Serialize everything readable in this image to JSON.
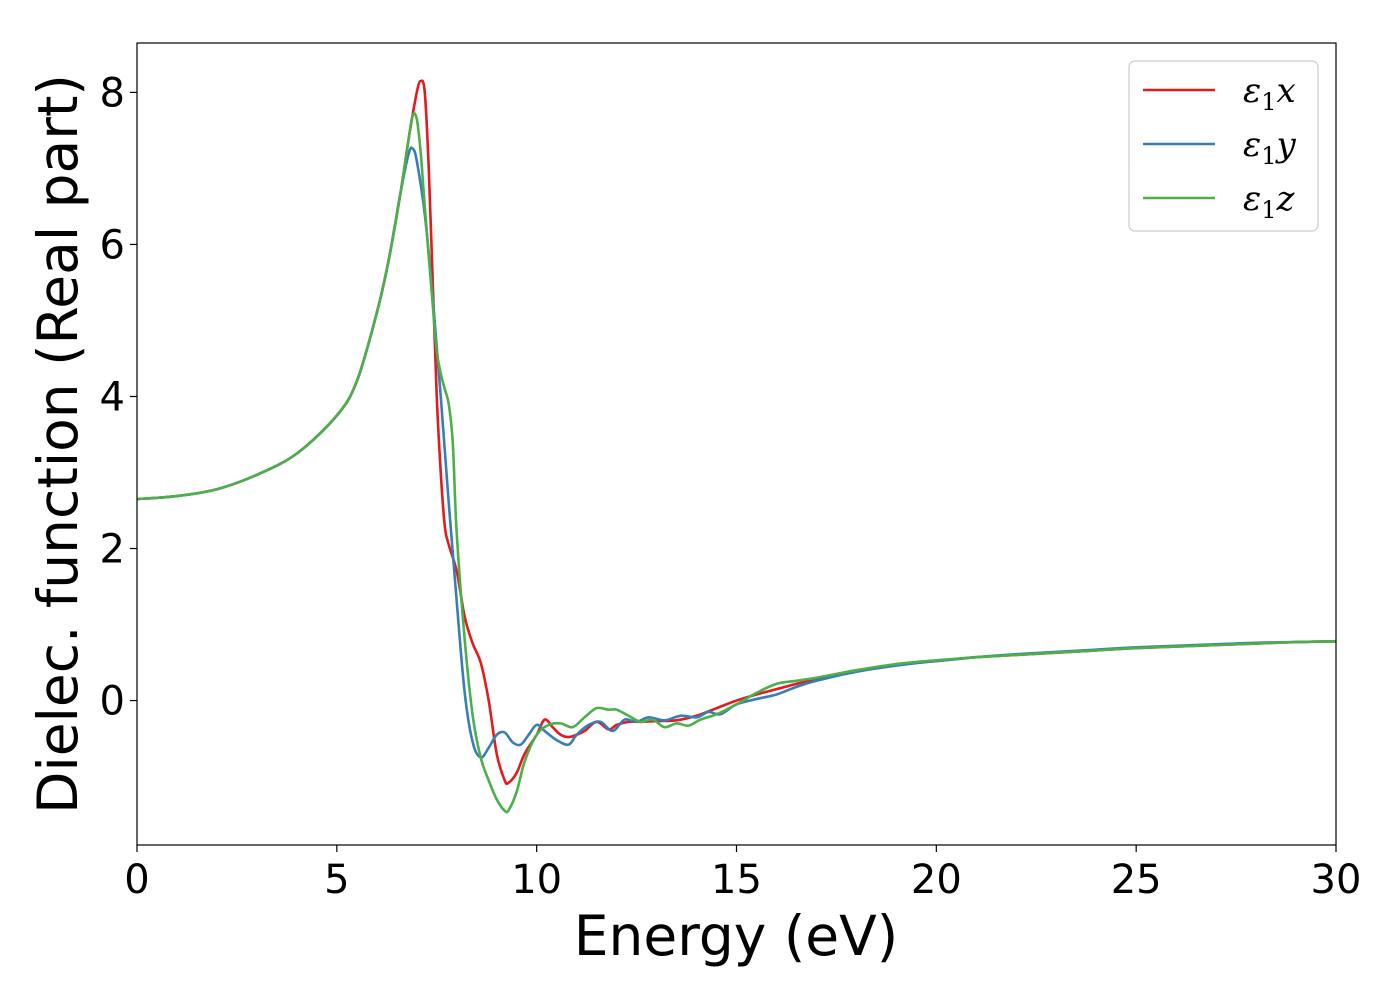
{
  "chart_data": {
    "type": "line",
    "title": "",
    "xlabel": "Energy (eV)",
    "ylabel": "Dielec. function (Real part)",
    "xlim": [
      0,
      30
    ],
    "ylim": [
      -1.9,
      8.65
    ],
    "xticks": [
      0,
      5,
      10,
      15,
      20,
      25,
      30
    ],
    "yticks": [
      0,
      2,
      4,
      6,
      8
    ],
    "xtick_labels": [
      "0",
      "5",
      "10",
      "15",
      "20",
      "25",
      "30"
    ],
    "ytick_labels": [
      "0",
      "2",
      "4",
      "6",
      "8"
    ],
    "grid": false,
    "legend_position": "top-right",
    "series": [
      {
        "name": "ε1x",
        "name_base": "ε",
        "name_sub": "1",
        "name_suffix": "x",
        "color": "#e41a1c",
        "x": [
          0,
          1,
          2,
          3,
          4,
          5,
          5.5,
          6,
          6.3,
          6.6,
          6.8,
          7.0,
          7.1,
          7.2,
          7.3,
          7.4,
          7.5,
          7.6,
          7.7,
          7.8,
          8.0,
          8.2,
          8.4,
          8.6,
          8.8,
          9.0,
          9.2,
          9.3,
          9.5,
          9.7,
          10.0,
          10.2,
          10.4,
          10.6,
          10.8,
          11.0,
          11.2,
          11.5,
          11.8,
          12.0,
          12.3,
          12.6,
          13.0,
          13.5,
          14.0,
          14.5,
          15.0,
          15.5,
          16.0,
          16.5,
          17.0,
          18.0,
          19.0,
          20.0,
          21.0,
          22.0,
          23.0,
          24.0,
          25.0,
          26.0,
          27.0,
          28.0,
          29.0,
          30.0
        ],
        "y": [
          2.65,
          2.69,
          2.78,
          2.97,
          3.25,
          3.75,
          4.2,
          5.1,
          5.8,
          6.7,
          7.4,
          8.0,
          8.15,
          8.0,
          7.0,
          5.5,
          4.0,
          3.0,
          2.3,
          2.05,
          1.7,
          1.1,
          0.75,
          0.5,
          0.0,
          -0.7,
          -1.05,
          -1.08,
          -0.95,
          -0.7,
          -0.45,
          -0.25,
          -0.35,
          -0.45,
          -0.48,
          -0.45,
          -0.4,
          -0.28,
          -0.38,
          -0.32,
          -0.28,
          -0.28,
          -0.27,
          -0.26,
          -0.2,
          -0.1,
          0.0,
          0.08,
          0.15,
          0.22,
          0.28,
          0.38,
          0.47,
          0.52,
          0.57,
          0.6,
          0.63,
          0.66,
          0.69,
          0.71,
          0.73,
          0.75,
          0.77,
          0.78
        ]
      },
      {
        "name": "ε1y",
        "name_base": "ε",
        "name_sub": "1",
        "name_suffix": "y",
        "color": "#377eb8",
        "x": [
          0,
          1,
          2,
          3,
          4,
          5,
          5.5,
          6,
          6.3,
          6.6,
          6.8,
          6.9,
          7.0,
          7.2,
          7.4,
          7.6,
          7.8,
          8.0,
          8.2,
          8.4,
          8.6,
          8.8,
          9.0,
          9.2,
          9.4,
          9.6,
          9.8,
          10.0,
          10.2,
          10.5,
          10.8,
          11.0,
          11.3,
          11.6,
          11.9,
          12.2,
          12.5,
          12.8,
          13.2,
          13.6,
          14.0,
          14.3,
          14.6,
          15.0,
          15.5,
          16.0,
          16.5,
          17.0,
          18.0,
          19.0,
          20.0,
          21.0,
          22.0,
          23.0,
          24.0,
          25.0,
          26.0,
          27.0,
          28.0,
          29.0,
          30.0
        ],
        "y": [
          2.65,
          2.69,
          2.78,
          2.97,
          3.25,
          3.75,
          4.2,
          5.1,
          5.8,
          6.7,
          7.2,
          7.26,
          7.1,
          6.4,
          5.3,
          4.0,
          2.6,
          1.3,
          0.1,
          -0.55,
          -0.75,
          -0.62,
          -0.45,
          -0.42,
          -0.55,
          -0.58,
          -0.45,
          -0.32,
          -0.4,
          -0.52,
          -0.58,
          -0.45,
          -0.32,
          -0.28,
          -0.4,
          -0.25,
          -0.28,
          -0.22,
          -0.26,
          -0.2,
          -0.22,
          -0.15,
          -0.18,
          -0.05,
          0.02,
          0.08,
          0.18,
          0.26,
          0.38,
          0.46,
          0.52,
          0.57,
          0.61,
          0.64,
          0.67,
          0.7,
          0.72,
          0.74,
          0.76,
          0.77,
          0.78
        ]
      },
      {
        "name": "ε1z",
        "name_base": "ε",
        "name_sub": "1",
        "name_suffix": "z",
        "color": "#4daf4a",
        "x": [
          0,
          1,
          2,
          3,
          4,
          5,
          5.5,
          6,
          6.3,
          6.6,
          6.8,
          6.9,
          7.0,
          7.1,
          7.2,
          7.4,
          7.5,
          7.6,
          7.7,
          7.8,
          7.9,
          8.0,
          8.2,
          8.4,
          8.6,
          8.8,
          9.0,
          9.2,
          9.3,
          9.5,
          9.7,
          10.0,
          10.3,
          10.6,
          10.9,
          11.2,
          11.5,
          11.8,
          12.0,
          12.3,
          12.6,
          12.9,
          13.2,
          13.5,
          13.8,
          14.1,
          14.5,
          15.0,
          15.5,
          16.0,
          16.5,
          17.0,
          18.0,
          19.0,
          20.0,
          21.0,
          22.0,
          23.0,
          24.0,
          25.0,
          26.0,
          27.0,
          28.0,
          29.0,
          30.0
        ],
        "y": [
          2.65,
          2.69,
          2.78,
          2.97,
          3.25,
          3.75,
          4.2,
          5.1,
          5.8,
          6.7,
          7.4,
          7.7,
          7.65,
          7.2,
          6.5,
          5.2,
          4.6,
          4.3,
          4.1,
          3.9,
          3.4,
          2.2,
          0.8,
          -0.2,
          -0.75,
          -1.05,
          -1.3,
          -1.45,
          -1.44,
          -1.2,
          -0.8,
          -0.45,
          -0.32,
          -0.3,
          -0.35,
          -0.22,
          -0.1,
          -0.12,
          -0.12,
          -0.2,
          -0.28,
          -0.25,
          -0.35,
          -0.3,
          -0.33,
          -0.25,
          -0.18,
          -0.05,
          0.1,
          0.22,
          0.26,
          0.3,
          0.4,
          0.48,
          0.53,
          0.57,
          0.6,
          0.63,
          0.66,
          0.69,
          0.71,
          0.73,
          0.75,
          0.77,
          0.78
        ]
      }
    ]
  }
}
